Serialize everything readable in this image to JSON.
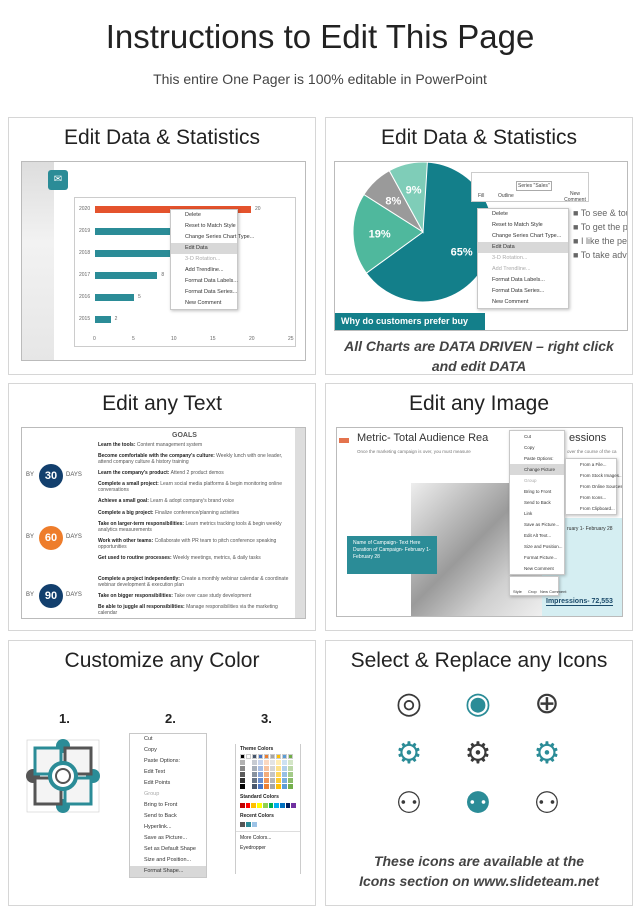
{
  "header": {
    "title": "Instructions to Edit This Page",
    "subtitle": "This entire One Pager is 100% editable in PowerPoint"
  },
  "panels": {
    "data1": {
      "title": "Edit Data & Statistics",
      "bars": [
        {
          "year": "2020",
          "value": 20,
          "label": "20",
          "color": "#e4532d"
        },
        {
          "year": "2019",
          "value": 11,
          "label": "",
          "color": "#2b8c97"
        },
        {
          "year": "2018",
          "value": 11,
          "label": "",
          "color": "#2b8c97"
        },
        {
          "year": "2017",
          "value": 8,
          "label": "8",
          "color": "#2b8c97"
        },
        {
          "year": "2016",
          "value": 5,
          "label": "5",
          "color": "#2b8c97"
        },
        {
          "year": "2015",
          "value": 2,
          "label": "2",
          "color": "#2b8c97"
        }
      ],
      "axis": [
        "0",
        "5",
        "10",
        "15",
        "20",
        "25"
      ],
      "menu": [
        "Delete",
        "Reset to Match Style",
        "Change Series Chart Type...",
        "Edit Data",
        "3-D Rotation...",
        "Add Trendline...",
        "Format Data Labels...",
        "Format Data Series...",
        "New Comment"
      ]
    },
    "data2": {
      "title": "Edit Data & Statistics",
      "pie": [
        {
          "label": "65%",
          "value": 65,
          "color": "#137f8a"
        },
        {
          "label": "19%",
          "value": 19,
          "color": "#4fb89d"
        },
        {
          "label": "8%",
          "value": 8,
          "color": "#9a9a9a"
        },
        {
          "label": "9%",
          "value": 9,
          "color": "#7fcdb8"
        }
      ],
      "toolbar": {
        "fill": "Fill",
        "outline": "Outline",
        "series": "Series \"Sales\"",
        "comment": "New Comment"
      },
      "legend": [
        "To see & tou",
        "To get the pr",
        "I like the per",
        "To take adva"
      ],
      "banner": "Why do customers prefer buy",
      "menu": [
        "Delete",
        "Reset to Match Style",
        "Change Series Chart Type...",
        "Edit Data",
        "3-D Rotation...",
        "Add Trendline...",
        "Format Data Labels...",
        "Format Data Series...",
        "New Comment"
      ],
      "caption1": "All Charts are DATA DRIVEN – right click",
      "caption2": "and edit DATA"
    },
    "text": {
      "title": "Edit any Text",
      "goals": "GOALS",
      "by": "BY",
      "days": "DAYS",
      "milestones": [
        {
          "num": "30",
          "color": "#123f6d",
          "items": [
            [
              "Learn the tools:",
              "Content management system"
            ],
            [
              "Become comfortable with the company's culture:",
              "Weekly lunch with one leader, attend company culture & history training"
            ],
            [
              "Learn the company's product:",
              "Attend 2 product demos"
            ],
            [
              "Complete a small project:",
              "Learn social media platforms & begin monitoring online conversations"
            ],
            [
              "Achieve a small goal:",
              "Learn & adopt company's brand voice"
            ]
          ]
        },
        {
          "num": "60",
          "color": "#ee7d2b",
          "items": [
            [
              "Complete a big project:",
              "Finalize conference/planning activities"
            ],
            [
              "Take on larger-term responsibilities:",
              "Learn metrics tracking tools & begin weekly analytics measurements"
            ],
            [
              "Work with other teams:",
              "Collaborate with PR team to pitch conference speaking opportunities"
            ],
            [
              "Get used to routine processes:",
              "Weekly meetings, metrics, & daily tasks"
            ]
          ]
        },
        {
          "num": "90",
          "color": "#123f6d",
          "items": [
            [
              "Complete a project independently:",
              "Create a monthly webinar calendar & coordinate webinar development & execution plan"
            ],
            [
              "Take on bigger responsibilities:",
              "Take over case study development"
            ],
            [
              "Be able to juggle all responsibilities:",
              "Manage responsibilities via the marketing calendar"
            ]
          ]
        }
      ]
    },
    "image": {
      "title": "Edit any Image",
      "heading": "Metric- Total Audience Rea",
      "heading_tail": "essions",
      "sub": "Once the marketing campaign is over, you must measure",
      "sub_tail": "over the course of the ca",
      "callout": [
        "Name of Campaign- Text Here",
        "Duration of Campaign- February 1- February 28"
      ],
      "side_date": "ruary 1- February 28",
      "impressions": "Impressions- 72,553",
      "menu": [
        "Cut",
        "Copy",
        "Paste Options:",
        "Change Picture",
        "Group",
        "Bring to Front",
        "Send to Back",
        "Link",
        "Save as Picture...",
        "Edit Alt Text...",
        "Size and Position...",
        "Format Picture...",
        "New Comment"
      ],
      "submenu": [
        "From a File...",
        "From Stock Images...",
        "From Online Sources...",
        "From Icons...",
        "From Clipboard..."
      ],
      "mini": [
        "Style",
        "Crop",
        "New Comment"
      ]
    },
    "color": {
      "title": "Customize any Color",
      "steps": [
        "1.",
        "2.",
        "3."
      ],
      "menu": [
        "Cut",
        "Copy",
        "Paste Options:",
        "Edit Text",
        "Edit Points",
        "Group",
        "Bring to Front",
        "Send to Back",
        "Hyperlink...",
        "Save as Picture...",
        "Set as Default Shape",
        "Size and Position...",
        "Format Shape..."
      ],
      "palette": {
        "theme": "Theme Colors",
        "standard": "Standard Colors",
        "recent": "Recent Colors",
        "more": "More Colors...",
        "eyedropper": "Eyedropper",
        "theme_colors": [
          "#000000",
          "#ffffff",
          "#44546a",
          "#4472c4",
          "#ed7d31",
          "#a5a5a5",
          "#ffc000",
          "#5b9bd5",
          "#70ad47"
        ],
        "standard_colors": [
          "#c00000",
          "#ff0000",
          "#ffc000",
          "#ffff00",
          "#92d050",
          "#00b050",
          "#00b0f0",
          "#0070c0",
          "#002060",
          "#7030a0"
        ],
        "recent_colors": [
          "#555555",
          "#2b8c97",
          "#9dc3e6"
        ]
      }
    },
    "icons": {
      "title": "Select & Replace any Icons",
      "icons": [
        "target-arrow-icon",
        "target-badge-icon",
        "crosshair-icon",
        "gear-icon",
        "gear-check-icon",
        "gear-person-icon",
        "presentation-team-icon",
        "team-icon",
        "group-meeting-icon"
      ],
      "caption1": "These icons are available at the",
      "caption2": "Icons section on www.slideteam.net"
    }
  }
}
